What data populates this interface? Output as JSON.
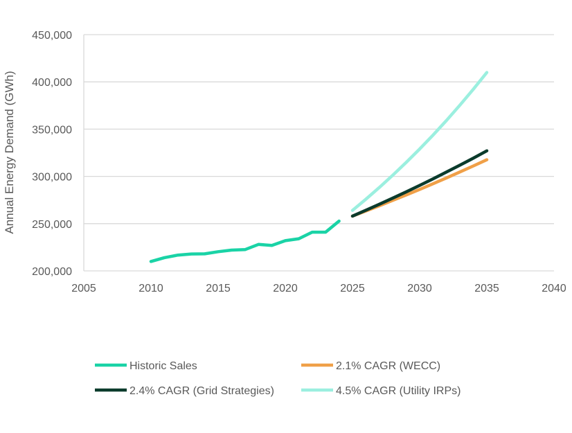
{
  "chart_data": {
    "type": "line",
    "title": "",
    "xlabel": "",
    "ylabel": "Annual Energy Demand (GWh)",
    "xlim": [
      2005,
      2040
    ],
    "ylim": [
      200000,
      450000
    ],
    "x_ticks": [
      "2005",
      "2010",
      "2015",
      "2020",
      "2025",
      "2030",
      "2035",
      "2040"
    ],
    "y_ticks": [
      "200,000",
      "250,000",
      "300,000",
      "350,000",
      "400,000",
      "450,000"
    ],
    "grid": "horizontal",
    "legend_position": "bottom",
    "series": [
      {
        "name": "Historic Sales",
        "color": "#1ad3a6",
        "x": [
          2010,
          2011,
          2012,
          2013,
          2014,
          2015,
          2016,
          2017,
          2018,
          2019,
          2020,
          2021,
          2022,
          2023,
          2024
        ],
        "values": [
          210000,
          214000,
          216700,
          217900,
          218000,
          220300,
          222000,
          222500,
          228000,
          227000,
          232000,
          234000,
          241000,
          241000,
          252700
        ]
      },
      {
        "name": "2.1% CAGR (WECC)",
        "color": "#f0a048",
        "x": [
          2025,
          2026,
          2027,
          2028,
          2029,
          2030,
          2031,
          2032,
          2033,
          2034,
          2035
        ],
        "values": [
          258000,
          263418,
          268950,
          274598,
          280364,
          286252,
          292263,
          298401,
          304667,
          311065,
          317598
        ]
      },
      {
        "name": "2.4% CAGR (Grid Strategies)",
        "color": "#0b3b2c",
        "x": [
          2025,
          2026,
          2027,
          2028,
          2029,
          2030,
          2031,
          2032,
          2033,
          2034,
          2035
        ],
        "values": [
          258000,
          264192,
          270533,
          277025,
          283674,
          290482,
          297454,
          304593,
          311903,
          319389,
          327054
        ]
      },
      {
        "name": "4.5% CAGR (Utility IRPs)",
        "color": "#9befdf",
        "x": [
          2025,
          2026,
          2027,
          2028,
          2029,
          2030,
          2031,
          2032,
          2033,
          2034,
          2035
        ],
        "values": [
          264000,
          275880,
          288295,
          301268,
          314825,
          328992,
          343797,
          359268,
          375435,
          392329,
          409984
        ]
      }
    ]
  }
}
